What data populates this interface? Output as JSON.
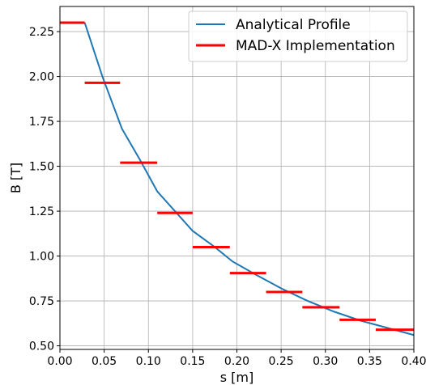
{
  "chart_data": {
    "type": "line",
    "xlabel": "s [m]",
    "ylabel": "B [T]",
    "xlim": [
      0.0,
      0.4
    ],
    "ylim": [
      0.48,
      2.39
    ],
    "x_ticks": [
      "0.00",
      "0.05",
      "0.10",
      "0.15",
      "0.20",
      "0.25",
      "0.30",
      "0.35",
      "0.40"
    ],
    "y_ticks": [
      "0.50",
      "0.75",
      "1.00",
      "1.25",
      "1.50",
      "1.75",
      "2.00",
      "2.25"
    ],
    "grid": true,
    "legend_position": "top-right",
    "series": [
      {
        "name": "Analytical Profile",
        "kind": "line",
        "color": "#1f77b4",
        "x": [
          0.028,
          0.048,
          0.07,
          0.09,
          0.11,
          0.13,
          0.15,
          0.175,
          0.195,
          0.22,
          0.25,
          0.28,
          0.31,
          0.34,
          0.37,
          0.4
        ],
        "y": [
          2.3,
          2.0,
          1.71,
          1.54,
          1.36,
          1.25,
          1.14,
          1.05,
          0.97,
          0.9,
          0.82,
          0.75,
          0.69,
          0.64,
          0.6,
          0.56
        ]
      },
      {
        "name": "MAD-X Implementation",
        "kind": "segments",
        "color": "#ff0000",
        "segments": [
          {
            "x0": 0.0,
            "x1": 0.028,
            "y": 2.3
          },
          {
            "x0": 0.028,
            "x1": 0.068,
            "y": 1.965
          },
          {
            "x0": 0.068,
            "x1": 0.11,
            "y": 1.52
          },
          {
            "x0": 0.11,
            "x1": 0.15,
            "y": 1.24
          },
          {
            "x0": 0.15,
            "x1": 0.192,
            "y": 1.05
          },
          {
            "x0": 0.192,
            "x1": 0.233,
            "y": 0.905
          },
          {
            "x0": 0.233,
            "x1": 0.274,
            "y": 0.8
          },
          {
            "x0": 0.274,
            "x1": 0.316,
            "y": 0.715
          },
          {
            "x0": 0.316,
            "x1": 0.357,
            "y": 0.645
          },
          {
            "x0": 0.357,
            "x1": 0.4,
            "y": 0.59
          }
        ]
      }
    ]
  }
}
